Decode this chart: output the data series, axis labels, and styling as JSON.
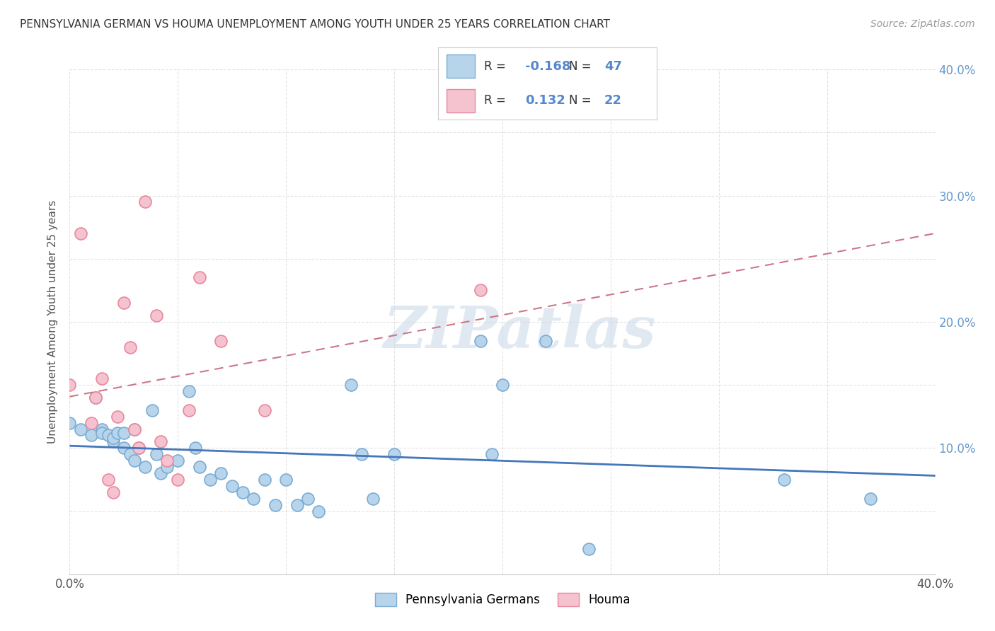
{
  "title": "PENNSYLVANIA GERMAN VS HOUMA UNEMPLOYMENT AMONG YOUTH UNDER 25 YEARS CORRELATION CHART",
  "source": "Source: ZipAtlas.com",
  "ylabel": "Unemployment Among Youth under 25 years",
  "xlim": [
    0.0,
    0.4
  ],
  "ylim": [
    0.0,
    0.4
  ],
  "pg_color": "#b8d4eb",
  "pg_edge_color": "#7aadd4",
  "houma_color": "#f5c2d0",
  "houma_edge_color": "#e8899e",
  "pg_line_color": "#4477bb",
  "houma_line_color": "#cc7788",
  "R_pg": -0.168,
  "N_pg": 47,
  "R_houma": 0.132,
  "N_houma": 22,
  "pg_x": [
    0.0,
    0.005,
    0.01,
    0.012,
    0.015,
    0.015,
    0.018,
    0.02,
    0.02,
    0.022,
    0.025,
    0.025,
    0.028,
    0.03,
    0.03,
    0.032,
    0.035,
    0.038,
    0.04,
    0.042,
    0.045,
    0.05,
    0.055,
    0.058,
    0.06,
    0.065,
    0.07,
    0.075,
    0.08,
    0.085,
    0.09,
    0.095,
    0.1,
    0.105,
    0.11,
    0.115,
    0.13,
    0.135,
    0.14,
    0.15,
    0.19,
    0.195,
    0.2,
    0.22,
    0.24,
    0.33,
    0.37
  ],
  "pg_y": [
    0.12,
    0.115,
    0.11,
    0.14,
    0.115,
    0.112,
    0.11,
    0.105,
    0.108,
    0.112,
    0.1,
    0.112,
    0.095,
    0.09,
    0.115,
    0.1,
    0.085,
    0.13,
    0.095,
    0.08,
    0.085,
    0.09,
    0.145,
    0.1,
    0.085,
    0.075,
    0.08,
    0.07,
    0.065,
    0.06,
    0.075,
    0.055,
    0.075,
    0.055,
    0.06,
    0.05,
    0.15,
    0.095,
    0.06,
    0.095,
    0.185,
    0.095,
    0.15,
    0.185,
    0.02,
    0.075,
    0.06
  ],
  "houma_x": [
    0.0,
    0.005,
    0.01,
    0.012,
    0.015,
    0.018,
    0.02,
    0.022,
    0.025,
    0.028,
    0.03,
    0.032,
    0.035,
    0.04,
    0.042,
    0.045,
    0.05,
    0.055,
    0.06,
    0.07,
    0.09,
    0.19
  ],
  "houma_y": [
    0.15,
    0.27,
    0.12,
    0.14,
    0.155,
    0.075,
    0.065,
    0.125,
    0.215,
    0.18,
    0.115,
    0.1,
    0.295,
    0.205,
    0.105,
    0.09,
    0.075,
    0.13,
    0.235,
    0.185,
    0.13,
    0.225
  ],
  "watermark": "ZIPatlas",
  "legend_labels": [
    "Pennsylvania Germans",
    "Houma"
  ],
  "background_color": "#ffffff",
  "grid_color": "#dddddd",
  "right_tick_color": "#6699cc",
  "right_tick_labels": [
    "",
    "",
    "10.0%",
    "",
    "20.0%",
    "",
    "30.0%",
    "",
    "40.0%"
  ],
  "ytick_positions": [
    0.0,
    0.05,
    0.1,
    0.15,
    0.2,
    0.25,
    0.3,
    0.35,
    0.4
  ],
  "xtick_positions": [
    0.0,
    0.05,
    0.1,
    0.15,
    0.2,
    0.25,
    0.3,
    0.35,
    0.4
  ],
  "xtick_labels": [
    "0.0%",
    "",
    "",
    "",
    "",
    "",
    "",
    "",
    "40.0%"
  ]
}
